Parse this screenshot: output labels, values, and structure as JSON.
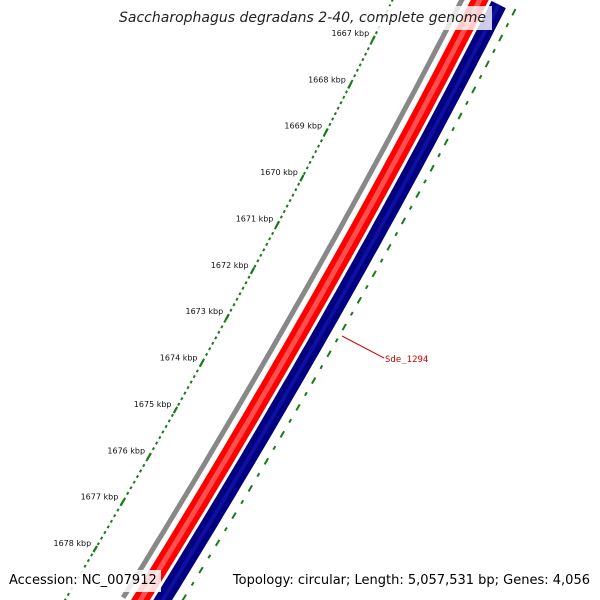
{
  "title": "Saccharophagus degradans 2-40, complete genome",
  "footer": {
    "accession": "Accession: NC_007912",
    "topology": "Topology: circular; Length: 5,057,531 bp; Genes: 4,056"
  },
  "ruler": {
    "unit": "kbp",
    "ticks": [
      {
        "kbp": 1667,
        "label": "1667 kbp"
      },
      {
        "kbp": 1668,
        "label": "1668 kbp"
      },
      {
        "kbp": 1669,
        "label": "1669 kbp"
      },
      {
        "kbp": 1670,
        "label": "1670 kbp"
      },
      {
        "kbp": 1671,
        "label": "1671 kbp"
      },
      {
        "kbp": 1672,
        "label": "1672 kbp"
      },
      {
        "kbp": 1673,
        "label": "1673 kbp"
      },
      {
        "kbp": 1674,
        "label": "1674 kbp"
      },
      {
        "kbp": 1675,
        "label": "1675 kbp"
      },
      {
        "kbp": 1676,
        "label": "1676 kbp"
      },
      {
        "kbp": 1677,
        "label": "1677 kbp"
      },
      {
        "kbp": 1678,
        "label": "1678 kbp"
      }
    ]
  },
  "gene_label": {
    "text": "Sde_1294",
    "color": "#cc0000"
  },
  "colors": {
    "backbone": "#888888",
    "forward_strand": "#ff0000",
    "reverse_strand": "#000080",
    "tick_marks": "#1a7a1a"
  }
}
